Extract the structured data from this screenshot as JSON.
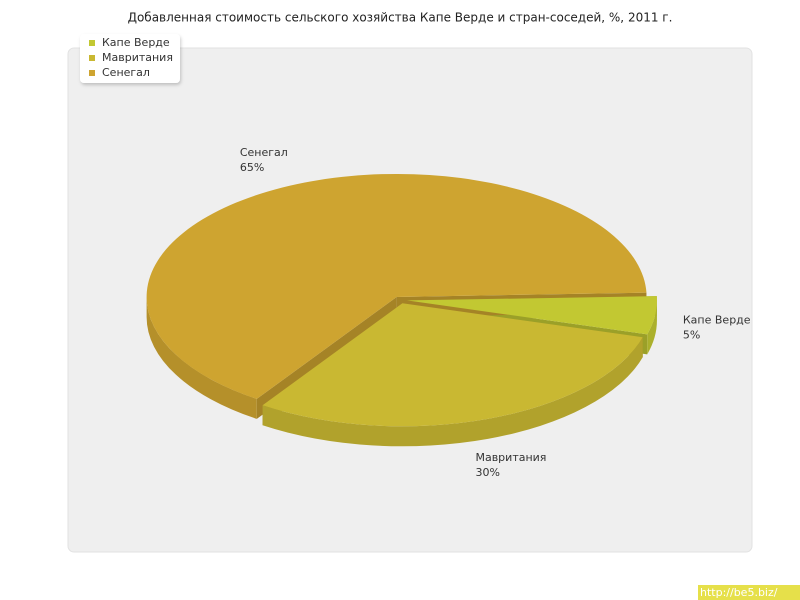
{
  "chart_data": {
    "type": "pie",
    "title": "Добавленная стоимость сельского хозяйства Капе Верде и стран-соседей, %, 2011 г.",
    "categories": [
      "Капе Верде",
      "Мавритания",
      "Сенегал"
    ],
    "values": [
      5,
      30,
      65
    ],
    "value_labels": [
      "5%",
      "30%",
      "65%"
    ],
    "colors": [
      "#c2c832",
      "#c9b832",
      "#cea430"
    ],
    "legend": "top-left"
  },
  "watermark": "http://be5.biz/"
}
